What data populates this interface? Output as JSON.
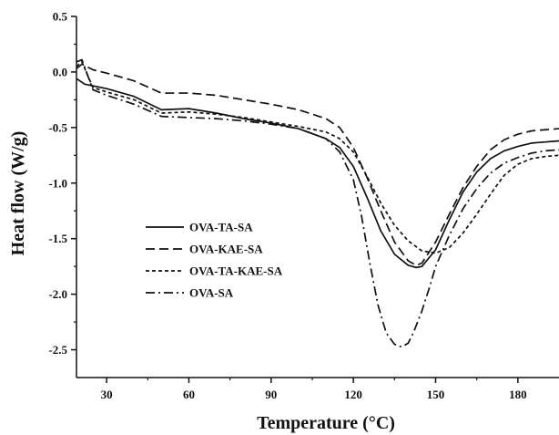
{
  "chart_data": {
    "type": "line",
    "title": "",
    "xlabel": "Temperature (°C)",
    "ylabel": "Heat flow (W/g)",
    "xlim": [
      19,
      195
    ],
    "ylim": [
      -2.75,
      0.5
    ],
    "xticks": [
      30,
      60,
      90,
      120,
      150,
      180
    ],
    "yticks": [
      0.5,
      0.0,
      -0.5,
      -1.0,
      -1.5,
      -2.0,
      -2.5
    ],
    "ytick_labels": [
      "0.5",
      "0.0",
      "-0.5",
      "-1.0",
      "-1.5",
      "-2.0",
      "-2.5"
    ],
    "grid": false,
    "legend_position": "center-left",
    "series": [
      {
        "name": "OVA-TA-SA",
        "dash": "solid",
        "x": [
          19,
          22,
          30,
          40,
          50,
          60,
          70,
          80,
          90,
          100,
          110,
          115,
          120,
          125,
          130,
          135,
          140,
          143,
          145,
          150,
          155,
          160,
          165,
          170,
          175,
          180,
          185,
          190,
          195
        ],
        "y": [
          -0.06,
          -0.11,
          -0.15,
          -0.22,
          -0.34,
          -0.33,
          -0.37,
          -0.42,
          -0.46,
          -0.51,
          -0.6,
          -0.68,
          -0.85,
          -1.13,
          -1.43,
          -1.64,
          -1.74,
          -1.76,
          -1.75,
          -1.6,
          -1.33,
          -1.08,
          -0.9,
          -0.78,
          -0.71,
          -0.67,
          -0.64,
          -0.63,
          -0.62
        ]
      },
      {
        "name": "OVA-KAE-SA",
        "dash": "dashed",
        "x": [
          19,
          21,
          25,
          30,
          40,
          50,
          60,
          70,
          80,
          90,
          100,
          110,
          115,
          120,
          125,
          130,
          135,
          140,
          143,
          145,
          150,
          155,
          160,
          165,
          170,
          175,
          180,
          185,
          190,
          195
        ],
        "y": [
          0.03,
          0.07,
          0.02,
          -0.01,
          -0.08,
          -0.19,
          -0.19,
          -0.21,
          -0.25,
          -0.29,
          -0.34,
          -0.42,
          -0.5,
          -0.68,
          -0.95,
          -1.25,
          -1.53,
          -1.7,
          -1.74,
          -1.72,
          -1.53,
          -1.28,
          -1.04,
          -0.85,
          -0.7,
          -0.61,
          -0.56,
          -0.53,
          -0.52,
          -0.51
        ]
      },
      {
        "name": "OVA-TA-KAE-SA",
        "dash": "dotted",
        "x": [
          19,
          21,
          25,
          30,
          40,
          50,
          60,
          70,
          80,
          90,
          100,
          110,
          115,
          120,
          125,
          130,
          135,
          140,
          145,
          150,
          155,
          160,
          165,
          170,
          175,
          180,
          185,
          190,
          195
        ],
        "y": [
          0.05,
          0.09,
          -0.14,
          -0.18,
          -0.25,
          -0.37,
          -0.36,
          -0.38,
          -0.41,
          -0.45,
          -0.49,
          -0.54,
          -0.6,
          -0.72,
          -0.94,
          -1.18,
          -1.38,
          -1.52,
          -1.61,
          -1.63,
          -1.58,
          -1.45,
          -1.28,
          -1.1,
          -0.93,
          -0.83,
          -0.78,
          -0.76,
          -0.75
        ]
      },
      {
        "name": "OVA-SA",
        "dash": "dashdot",
        "x": [
          19,
          21,
          25,
          30,
          40,
          50,
          60,
          70,
          80,
          90,
          100,
          110,
          115,
          120,
          123,
          126,
          129,
          132,
          135,
          137,
          138,
          140,
          142,
          145,
          148,
          150,
          155,
          160,
          165,
          170,
          175,
          180,
          185,
          190,
          195
        ],
        "y": [
          0.09,
          0.11,
          -0.16,
          -0.21,
          -0.29,
          -0.4,
          -0.41,
          -0.42,
          -0.44,
          -0.47,
          -0.51,
          -0.6,
          -0.72,
          -0.97,
          -1.3,
          -1.72,
          -2.1,
          -2.35,
          -2.45,
          -2.47,
          -2.47,
          -2.44,
          -2.34,
          -2.15,
          -1.92,
          -1.75,
          -1.47,
          -1.23,
          -1.05,
          -0.91,
          -0.82,
          -0.77,
          -0.73,
          -0.71,
          -0.7
        ]
      }
    ]
  }
}
